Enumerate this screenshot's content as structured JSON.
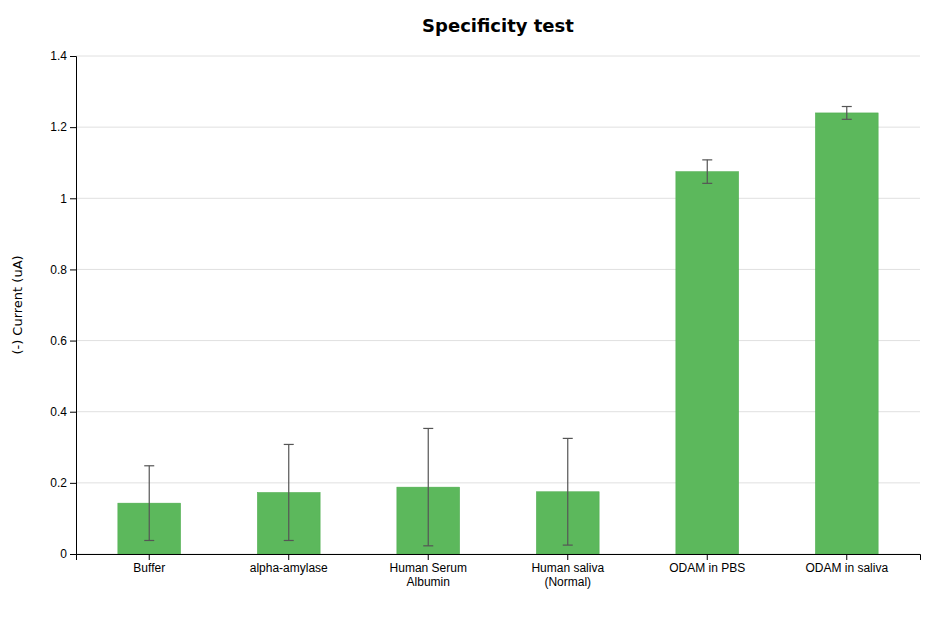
{
  "chart_data": {
    "type": "bar",
    "title": "Specificity test",
    "ylabel": "(-) Current (uA)",
    "categories": [
      "Buffer",
      "alpha-amylase",
      "Human Serum\nAlbumin",
      "Human saliva\n(Normal)",
      "ODAM in PBS",
      "ODAM in saliva"
    ],
    "values": [
      0.143,
      0.173,
      0.188,
      0.175,
      1.075,
      1.24
    ],
    "errors": [
      0.105,
      0.135,
      0.165,
      0.15,
      0.033,
      0.018
    ],
    "color": "#5cb85c",
    "ylim": [
      0,
      1.4
    ],
    "yticks": [
      0,
      0.2,
      0.4,
      0.6,
      0.8,
      1,
      1.2,
      1.4
    ],
    "grid": true
  }
}
